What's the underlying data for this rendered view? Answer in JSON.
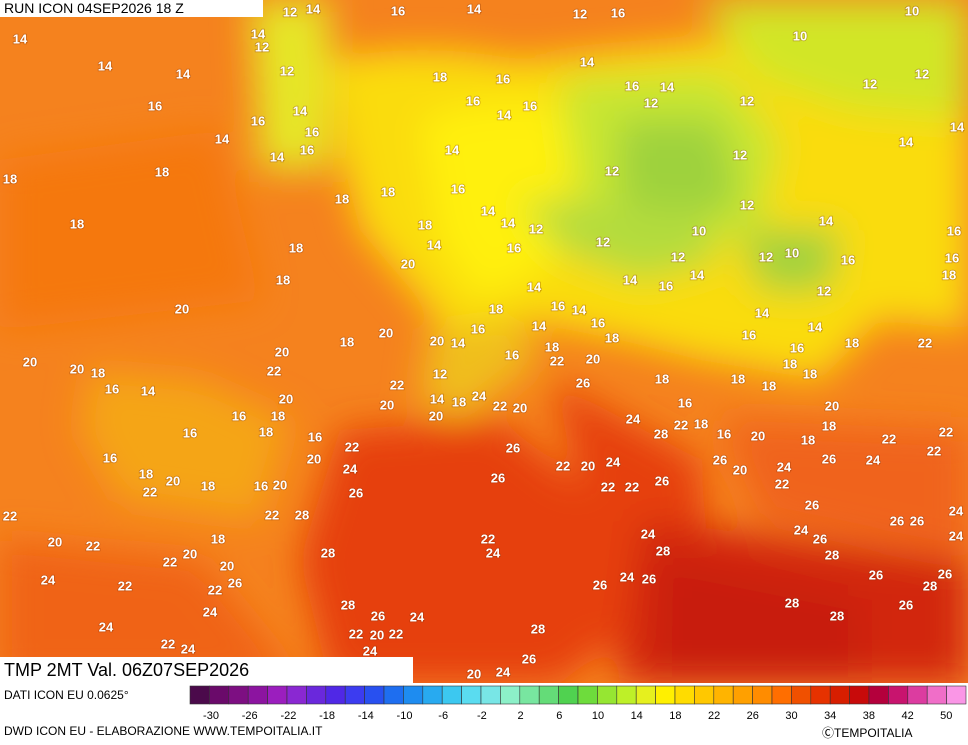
{
  "header": {
    "run": "RUN ICON 04SEP2026 18 Z"
  },
  "footer": {
    "title": "TMP 2MT Val. 06Z07SEP2026",
    "source": "DATI ICON EU 0.0625°",
    "credit": "DWD ICON EU - ELABORAZIONE WWW.TEMPOITALIA.IT",
    "brand": "ⒸTEMPOITALIA"
  },
  "legend": {
    "colors": [
      "#4b0a4b",
      "#6a0a6a",
      "#7d0f82",
      "#8c14a0",
      "#9b1ebe",
      "#8a28d2",
      "#6a28dc",
      "#5028e6",
      "#3c3cf0",
      "#2850f0",
      "#1e6ef0",
      "#1e8cf0",
      "#28aaf0",
      "#3cc8f0",
      "#5adcf0",
      "#78e6e6",
      "#8cf0c8",
      "#78e6a0",
      "#64dc78",
      "#50d250",
      "#6edc3c",
      "#96e632",
      "#bef028",
      "#e6f01e",
      "#fff000",
      "#ffdc00",
      "#ffc800",
      "#ffb400",
      "#ffa000",
      "#ff8c00",
      "#ff6e00",
      "#f05000",
      "#e63200",
      "#d71e00",
      "#c80a0a",
      "#b4003c",
      "#c8146e",
      "#dc3ca0",
      "#f06ec8",
      "#fa96e6"
    ],
    "ticks": [
      -30,
      -26,
      -22,
      -18,
      -14,
      -10,
      -6,
      -2,
      2,
      6,
      10,
      14,
      18,
      22,
      26,
      30,
      34,
      38,
      42,
      50
    ]
  },
  "map": {
    "labels": [
      14,
      14,
      14,
      16,
      14,
      18,
      18,
      18,
      18,
      18,
      20,
      20,
      20,
      18,
      16,
      14,
      16,
      16,
      16,
      18,
      22,
      20,
      18,
      22,
      20,
      22,
      24,
      22,
      22,
      20,
      20,
      18,
      26,
      22,
      24,
      24,
      24,
      22,
      24,
      12,
      14,
      14,
      12,
      12,
      14,
      16,
      16,
      14,
      16,
      18,
      18,
      20,
      18,
      14,
      20,
      18,
      20,
      22,
      20,
      18,
      18,
      16,
      22,
      24,
      20,
      16,
      20,
      22,
      28,
      26,
      28,
      28,
      26,
      22,
      20,
      22,
      24,
      24,
      16,
      14,
      18,
      16,
      16,
      14,
      16,
      14,
      16,
      14,
      14,
      12,
      16,
      14,
      18,
      16,
      14,
      20,
      12,
      14,
      18,
      24,
      22,
      20,
      20,
      22,
      20,
      16,
      18,
      22,
      20,
      26,
      16,
      14,
      16,
      14,
      26,
      26,
      22,
      20,
      24,
      22,
      22,
      26,
      22,
      24,
      24,
      28,
      26,
      24,
      26,
      28,
      26,
      20,
      24,
      12,
      16,
      14,
      16,
      12,
      14,
      12,
      12,
      14,
      16,
      12,
      14,
      10,
      12,
      12,
      12,
      18,
      24,
      28,
      22,
      18,
      16,
      16,
      18,
      26,
      20,
      20,
      24,
      22,
      26,
      24,
      26,
      28,
      26,
      28,
      28,
      26,
      28,
      26,
      24,
      24,
      26,
      26,
      22,
      22,
      22,
      24,
      26,
      18,
      18,
      20,
      18,
      18,
      16,
      18,
      18,
      16,
      14,
      14,
      12,
      12,
      10,
      16,
      18,
      22,
      18,
      16,
      16,
      14,
      14,
      14,
      12,
      12,
      10,
      10
    ]
  }
}
